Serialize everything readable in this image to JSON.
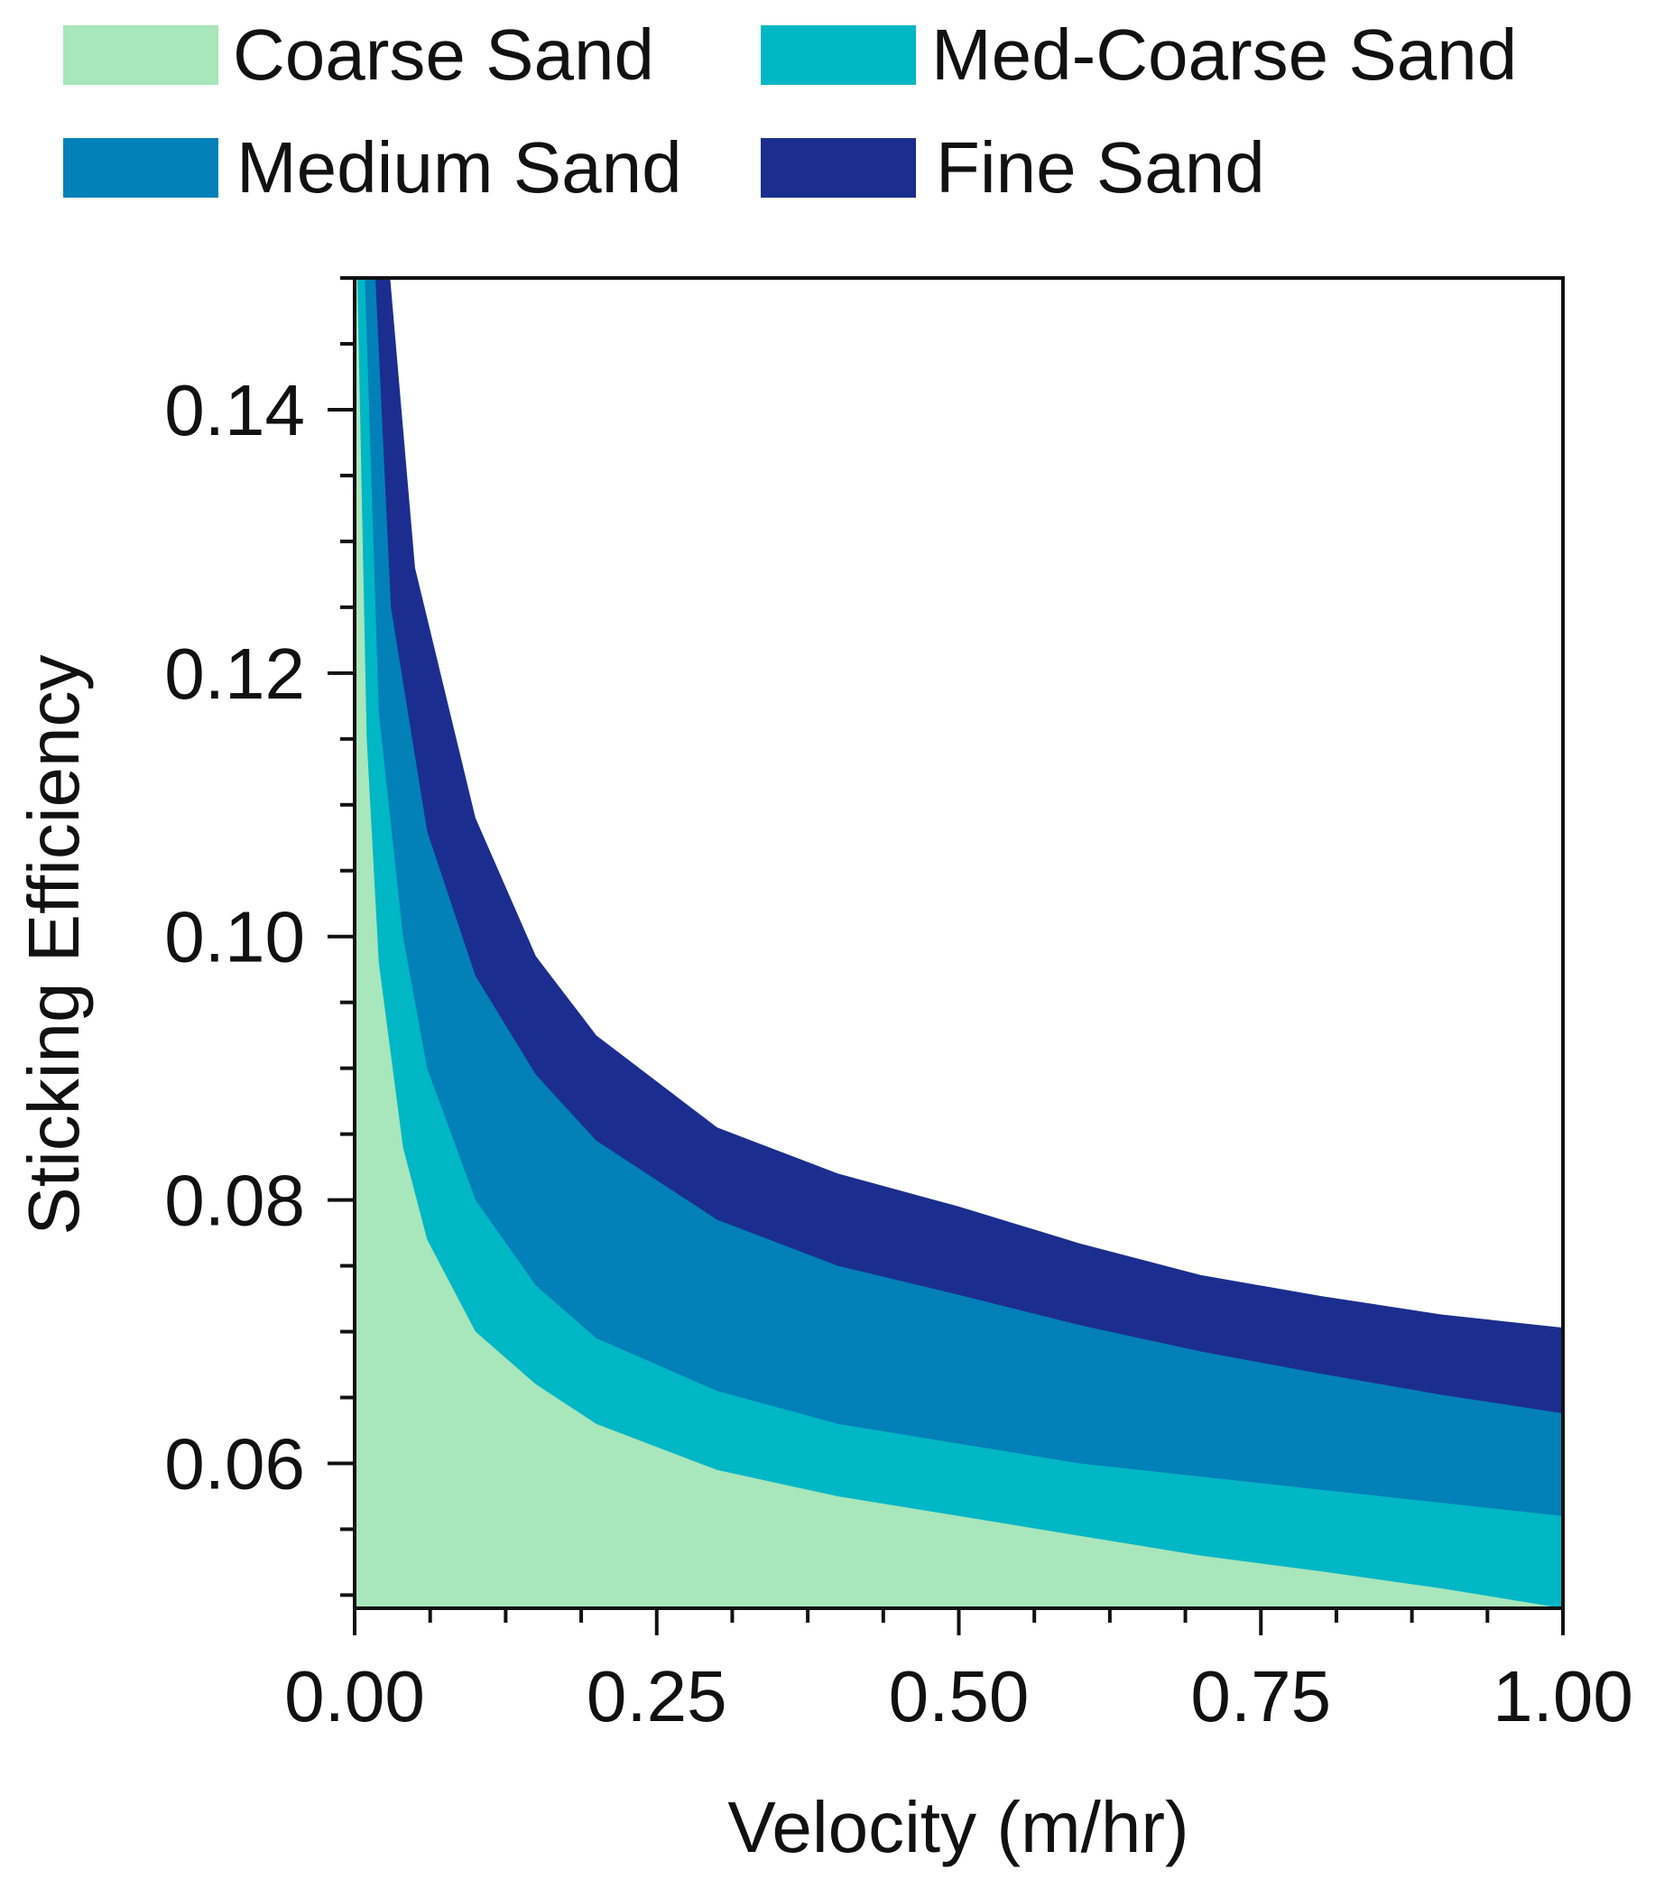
{
  "chart_data": {
    "type": "area",
    "title": "",
    "xlabel": "Velocity (m/hr)",
    "ylabel": "Sticking Efficiency",
    "xlim": [
      0,
      1
    ],
    "ylim": [
      0.049,
      0.15
    ],
    "x_ticks": [
      {
        "value": 0,
        "label": "0.00"
      },
      {
        "value": 0.25,
        "label": "0.25"
      },
      {
        "value": 0.5,
        "label": "0.50"
      },
      {
        "value": 0.75,
        "label": "0.75"
      },
      {
        "value": 1,
        "label": "1.00"
      }
    ],
    "y_ticks": [
      {
        "value": 0.06,
        "label": "0.06"
      },
      {
        "value": 0.08,
        "label": "0.08"
      },
      {
        "value": 0.1,
        "label": "0.10"
      },
      {
        "value": 0.12,
        "label": "0.12"
      },
      {
        "value": 0.14,
        "label": "0.14"
      }
    ],
    "x_minor_step": 0.0625,
    "y_minor_step": 0.005,
    "grid": false,
    "legend_position": "top",
    "stacked_boundaries": true,
    "series": [
      {
        "name": "Fine Sand",
        "color": "#1b2e8f",
        "x": [
          0.02,
          0.05,
          0.1,
          0.15,
          0.2,
          0.3,
          0.4,
          0.5,
          0.6,
          0.7,
          0.8,
          0.9,
          1.0
        ],
        "y": [
          0.15,
          0.128,
          0.109,
          0.0985,
          0.0925,
          0.0855,
          0.082,
          0.0795,
          0.0767,
          0.0743,
          0.0727,
          0.0713,
          0.0703
        ]
      },
      {
        "name": "Medium Sand",
        "color": "#0280b8",
        "x": [
          0.012,
          0.03,
          0.06,
          0.1,
          0.15,
          0.2,
          0.3,
          0.4,
          0.5,
          0.6,
          0.7,
          0.8,
          0.9,
          1.0
        ],
        "y": [
          0.15,
          0.125,
          0.108,
          0.097,
          0.0895,
          0.0845,
          0.0785,
          0.075,
          0.0728,
          0.0705,
          0.0685,
          0.0668,
          0.0652,
          0.0638
        ]
      },
      {
        "name": "Med-Coarse Sand",
        "color": "#00b7c5",
        "x": [
          0.005,
          0.02,
          0.04,
          0.06,
          0.1,
          0.15,
          0.2,
          0.3,
          0.4,
          0.5,
          0.6,
          0.7,
          0.8,
          0.9,
          1.0
        ],
        "y": [
          0.15,
          0.117,
          0.1,
          0.09,
          0.08,
          0.0735,
          0.0695,
          0.0655,
          0.063,
          0.0615,
          0.06,
          0.059,
          0.058,
          0.057,
          0.056
        ]
      },
      {
        "name": "Coarse Sand",
        "color": "#a8e6bb",
        "x": [
          0.0,
          0.01,
          0.02,
          0.04,
          0.06,
          0.1,
          0.15,
          0.2,
          0.3,
          0.4,
          0.5,
          0.6,
          0.7,
          0.8,
          0.9,
          1.0
        ],
        "y": [
          0.15,
          0.115,
          0.098,
          0.084,
          0.077,
          0.07,
          0.066,
          0.063,
          0.0595,
          0.0575,
          0.056,
          0.0545,
          0.053,
          0.0518,
          0.0505,
          0.049
        ]
      }
    ]
  }
}
